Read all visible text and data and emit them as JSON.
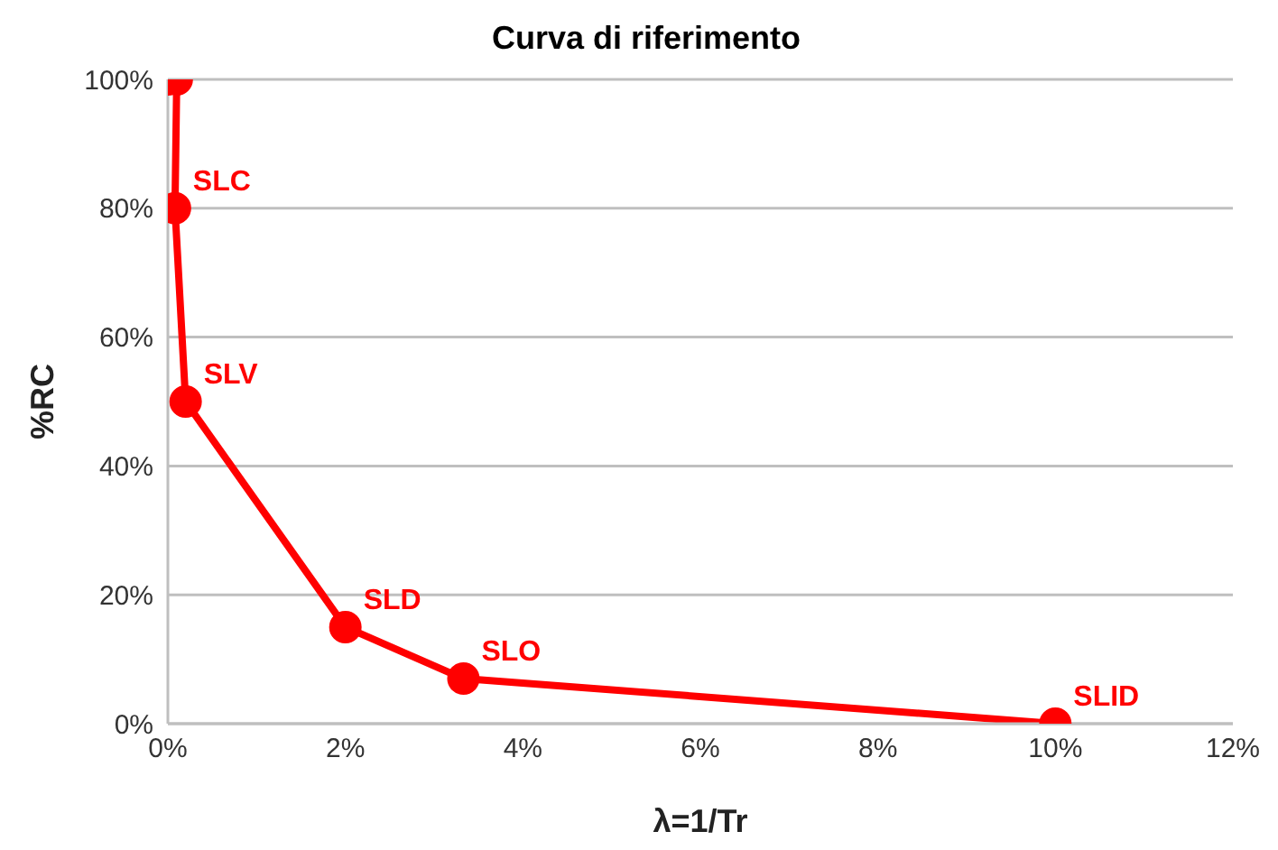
{
  "chart_data": {
    "type": "line",
    "title": "Curva di riferimento",
    "xlabel": "λ=1/Tr",
    "ylabel": "%RC",
    "x": [
      0,
      0.1,
      0.08,
      0.2,
      2,
      3.33,
      10
    ],
    "series": [
      {
        "color": "#ff0000",
        "values": [
          100,
          100,
          80,
          50,
          15,
          7,
          0
        ]
      }
    ],
    "marker": "circle",
    "line_style": "solid",
    "xlim": [
      0,
      12
    ],
    "xticks": [
      {
        "value": 0,
        "label": "0%"
      },
      {
        "value": 2,
        "label": "2%"
      },
      {
        "value": 4,
        "label": "4%"
      },
      {
        "value": 6,
        "label": "6%"
      },
      {
        "value": 8,
        "label": "8%"
      },
      {
        "value": 10,
        "label": "10%"
      },
      {
        "value": 12,
        "label": "12%"
      }
    ],
    "ylim": [
      0,
      100
    ],
    "yticks": [
      {
        "value": 0,
        "label": "0%"
      },
      {
        "value": 20,
        "label": "20%"
      },
      {
        "value": 40,
        "label": "40%"
      },
      {
        "value": 60,
        "label": "60%"
      },
      {
        "value": 80,
        "label": "80%"
      },
      {
        "value": 100,
        "label": "100%"
      }
    ],
    "grid": "y",
    "annotations": [
      {
        "text": "SLC",
        "x": 0.08,
        "y": 80
      },
      {
        "text": "SLV",
        "x": 0.2,
        "y": 50
      },
      {
        "text": "SLD",
        "x": 2,
        "y": 15
      },
      {
        "text": "SLO",
        "x": 3.33,
        "y": 7
      },
      {
        "text": "SLID",
        "x": 10,
        "y": 0
      }
    ]
  }
}
